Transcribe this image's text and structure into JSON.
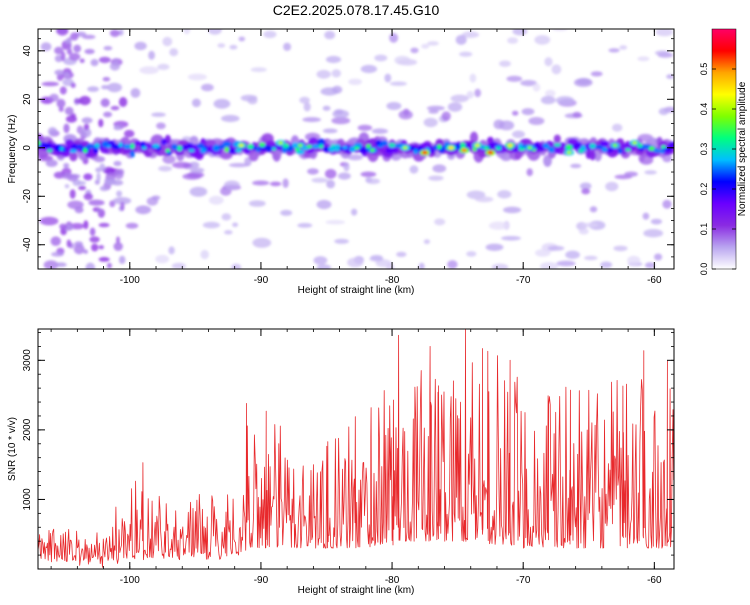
{
  "title": "C2E2.2025.078.17.45.G10",
  "colors": {
    "snr_line": "#e8292c",
    "axis": "#000000"
  },
  "chart_data": [
    {
      "type": "heatmap",
      "xlabel": "Height of straight line (km)",
      "ylabel": "Frequency (Hz)",
      "xlim": [
        -107,
        -58.5
      ],
      "ylim": [
        -50,
        49
      ],
      "xticks": [
        -100,
        -90,
        -80,
        -70,
        -60
      ],
      "yticks": [
        -40,
        -20,
        0,
        20,
        40
      ],
      "colorbar": {
        "label": "Normalized spectral amplitude",
        "range": [
          0.0,
          0.6
        ],
        "ticks": [
          0.0,
          0.1,
          0.2,
          0.3,
          0.4,
          0.5
        ],
        "colormap": [
          "#ffffff",
          "#b9a5f0",
          "#8a2be2",
          "#6a00ff",
          "#0000ff",
          "#00bfff",
          "#00ff7f",
          "#7fff00",
          "#ffff00",
          "#ffa500",
          "#ff0000",
          "#ff0066"
        ]
      },
      "band": {
        "center_hz": 0,
        "half_width_hz": 6
      },
      "bright_peaks": [
        {
          "x": -91.5,
          "y": 1,
          "v": 0.42
        },
        {
          "x": -88.5,
          "y": 2,
          "v": 0.4
        },
        {
          "x": -87.0,
          "y": 1,
          "v": 0.38
        },
        {
          "x": -81.5,
          "y": -1,
          "v": 0.36
        },
        {
          "x": -79.0,
          "y": 0,
          "v": 0.4
        },
        {
          "x": -77.5,
          "y": -2,
          "v": 0.55
        },
        {
          "x": -75.5,
          "y": 0,
          "v": 0.45
        },
        {
          "x": -74.5,
          "y": -1,
          "v": 0.5
        },
        {
          "x": -73.5,
          "y": 1,
          "v": 0.42
        },
        {
          "x": -72.5,
          "y": -2,
          "v": 0.55
        },
        {
          "x": -71.0,
          "y": 1,
          "v": 0.45
        },
        {
          "x": -69.5,
          "y": 0,
          "v": 0.38
        },
        {
          "x": -66.5,
          "y": -2,
          "v": 0.4
        },
        {
          "x": -63.0,
          "y": 1,
          "v": 0.38
        },
        {
          "x": -61.5,
          "y": 2,
          "v": 0.4
        }
      ]
    },
    {
      "type": "line",
      "xlabel": "Height of straight line (km)",
      "ylabel": "SNR (10 * v/v)",
      "xlim": [
        -107,
        -58.5
      ],
      "ylim": [
        0,
        3450
      ],
      "xticks": [
        -100,
        -90,
        -80,
        -70,
        -60
      ],
      "yticks": [
        1000,
        2000,
        3000
      ],
      "envelope": [
        {
          "x": -107,
          "base": 150,
          "peak": 650
        },
        {
          "x": -102,
          "base": 100,
          "peak": 550
        },
        {
          "x": -100,
          "base": 200,
          "peak": 1400
        },
        {
          "x": -96,
          "base": 200,
          "peak": 1000
        },
        {
          "x": -91.5,
          "base": 200,
          "peak": 1200
        },
        {
          "x": -91,
          "base": 300,
          "peak": 2400
        },
        {
          "x": -86,
          "base": 300,
          "peak": 1800
        },
        {
          "x": -82,
          "base": 300,
          "peak": 2200
        },
        {
          "x": -80,
          "base": 400,
          "peak": 2800
        },
        {
          "x": -76,
          "base": 400,
          "peak": 3100
        },
        {
          "x": -74,
          "base": 400,
          "peak": 3450
        },
        {
          "x": -70,
          "base": 300,
          "peak": 2800
        },
        {
          "x": -65,
          "base": 300,
          "peak": 2600
        },
        {
          "x": -60,
          "base": 300,
          "peak": 2900
        },
        {
          "x": -58.5,
          "base": 300,
          "peak": 2300
        }
      ],
      "spikes": [
        {
          "x": -99.0,
          "y": 1530
        },
        {
          "x": -91.1,
          "y": 2380
        },
        {
          "x": -89.6,
          "y": 2270
        },
        {
          "x": -84.9,
          "y": 1830
        },
        {
          "x": -82.8,
          "y": 2190
        },
        {
          "x": -81.6,
          "y": 2320
        },
        {
          "x": -79.9,
          "y": 2430
        },
        {
          "x": -79.5,
          "y": 3360
        },
        {
          "x": -77.1,
          "y": 3200
        },
        {
          "x": -76.5,
          "y": 2540
        },
        {
          "x": -74.4,
          "y": 3440
        },
        {
          "x": -73.1,
          "y": 3170
        },
        {
          "x": -72.7,
          "y": 3130
        },
        {
          "x": -71.0,
          "y": 3000
        },
        {
          "x": -68.1,
          "y": 2490
        },
        {
          "x": -66.4,
          "y": 2570
        },
        {
          "x": -62.4,
          "y": 2630
        },
        {
          "x": -60.8,
          "y": 3140
        },
        {
          "x": -59.0,
          "y": 2990
        },
        {
          "x": -58.8,
          "y": 2590
        }
      ]
    }
  ]
}
